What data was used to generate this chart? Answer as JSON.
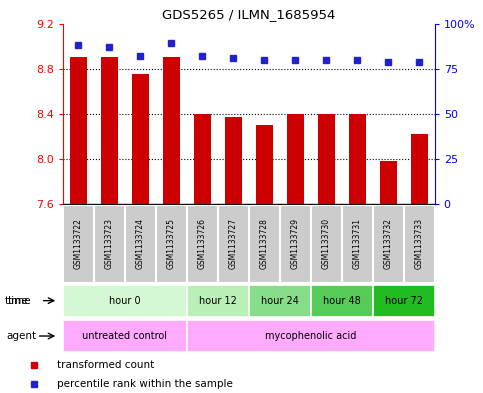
{
  "title": "GDS5265 / ILMN_1685954",
  "samples": [
    "GSM1133722",
    "GSM1133723",
    "GSM1133724",
    "GSM1133725",
    "GSM1133726",
    "GSM1133727",
    "GSM1133728",
    "GSM1133729",
    "GSM1133730",
    "GSM1133731",
    "GSM1133732",
    "GSM1133733"
  ],
  "transformed_count": [
    8.9,
    8.9,
    8.75,
    8.9,
    8.4,
    8.37,
    8.3,
    8.4,
    8.4,
    8.4,
    7.98,
    8.22
  ],
  "percentile_rank": [
    88,
    87,
    82,
    89,
    82,
    81,
    80,
    80,
    80,
    80,
    79,
    79
  ],
  "ylim_left": [
    7.6,
    9.2
  ],
  "ylim_right": [
    0,
    100
  ],
  "yticks_left": [
    7.6,
    8.0,
    8.4,
    8.8,
    9.2
  ],
  "yticks_right": [
    0,
    25,
    50,
    75,
    100
  ],
  "ytick_labels_right": [
    "0",
    "25",
    "50",
    "75",
    "100%"
  ],
  "bar_color": "#cc0000",
  "dot_color": "#2222cc",
  "bar_bottom": 7.6,
  "time_groups": [
    {
      "label": "hour 0",
      "start": 0,
      "end": 4,
      "color": "#d4f7d4"
    },
    {
      "label": "hour 12",
      "start": 4,
      "end": 6,
      "color": "#b8f0b8"
    },
    {
      "label": "hour 24",
      "start": 6,
      "end": 8,
      "color": "#88dd88"
    },
    {
      "label": "hour 48",
      "start": 8,
      "end": 10,
      "color": "#55cc55"
    },
    {
      "label": "hour 72",
      "start": 10,
      "end": 12,
      "color": "#22bb22"
    }
  ],
  "agent_groups": [
    {
      "label": "untreated control",
      "start": 0,
      "end": 4,
      "color": "#ffaaff"
    },
    {
      "label": "mycophenolic acid",
      "start": 4,
      "end": 12,
      "color": "#ffaaff"
    }
  ],
  "legend_bar_label": "transformed count",
  "legend_dot_label": "percentile rank within the sample",
  "bg_color": "#ffffff",
  "sample_box_color": "#cccccc",
  "border_color": "#000000"
}
